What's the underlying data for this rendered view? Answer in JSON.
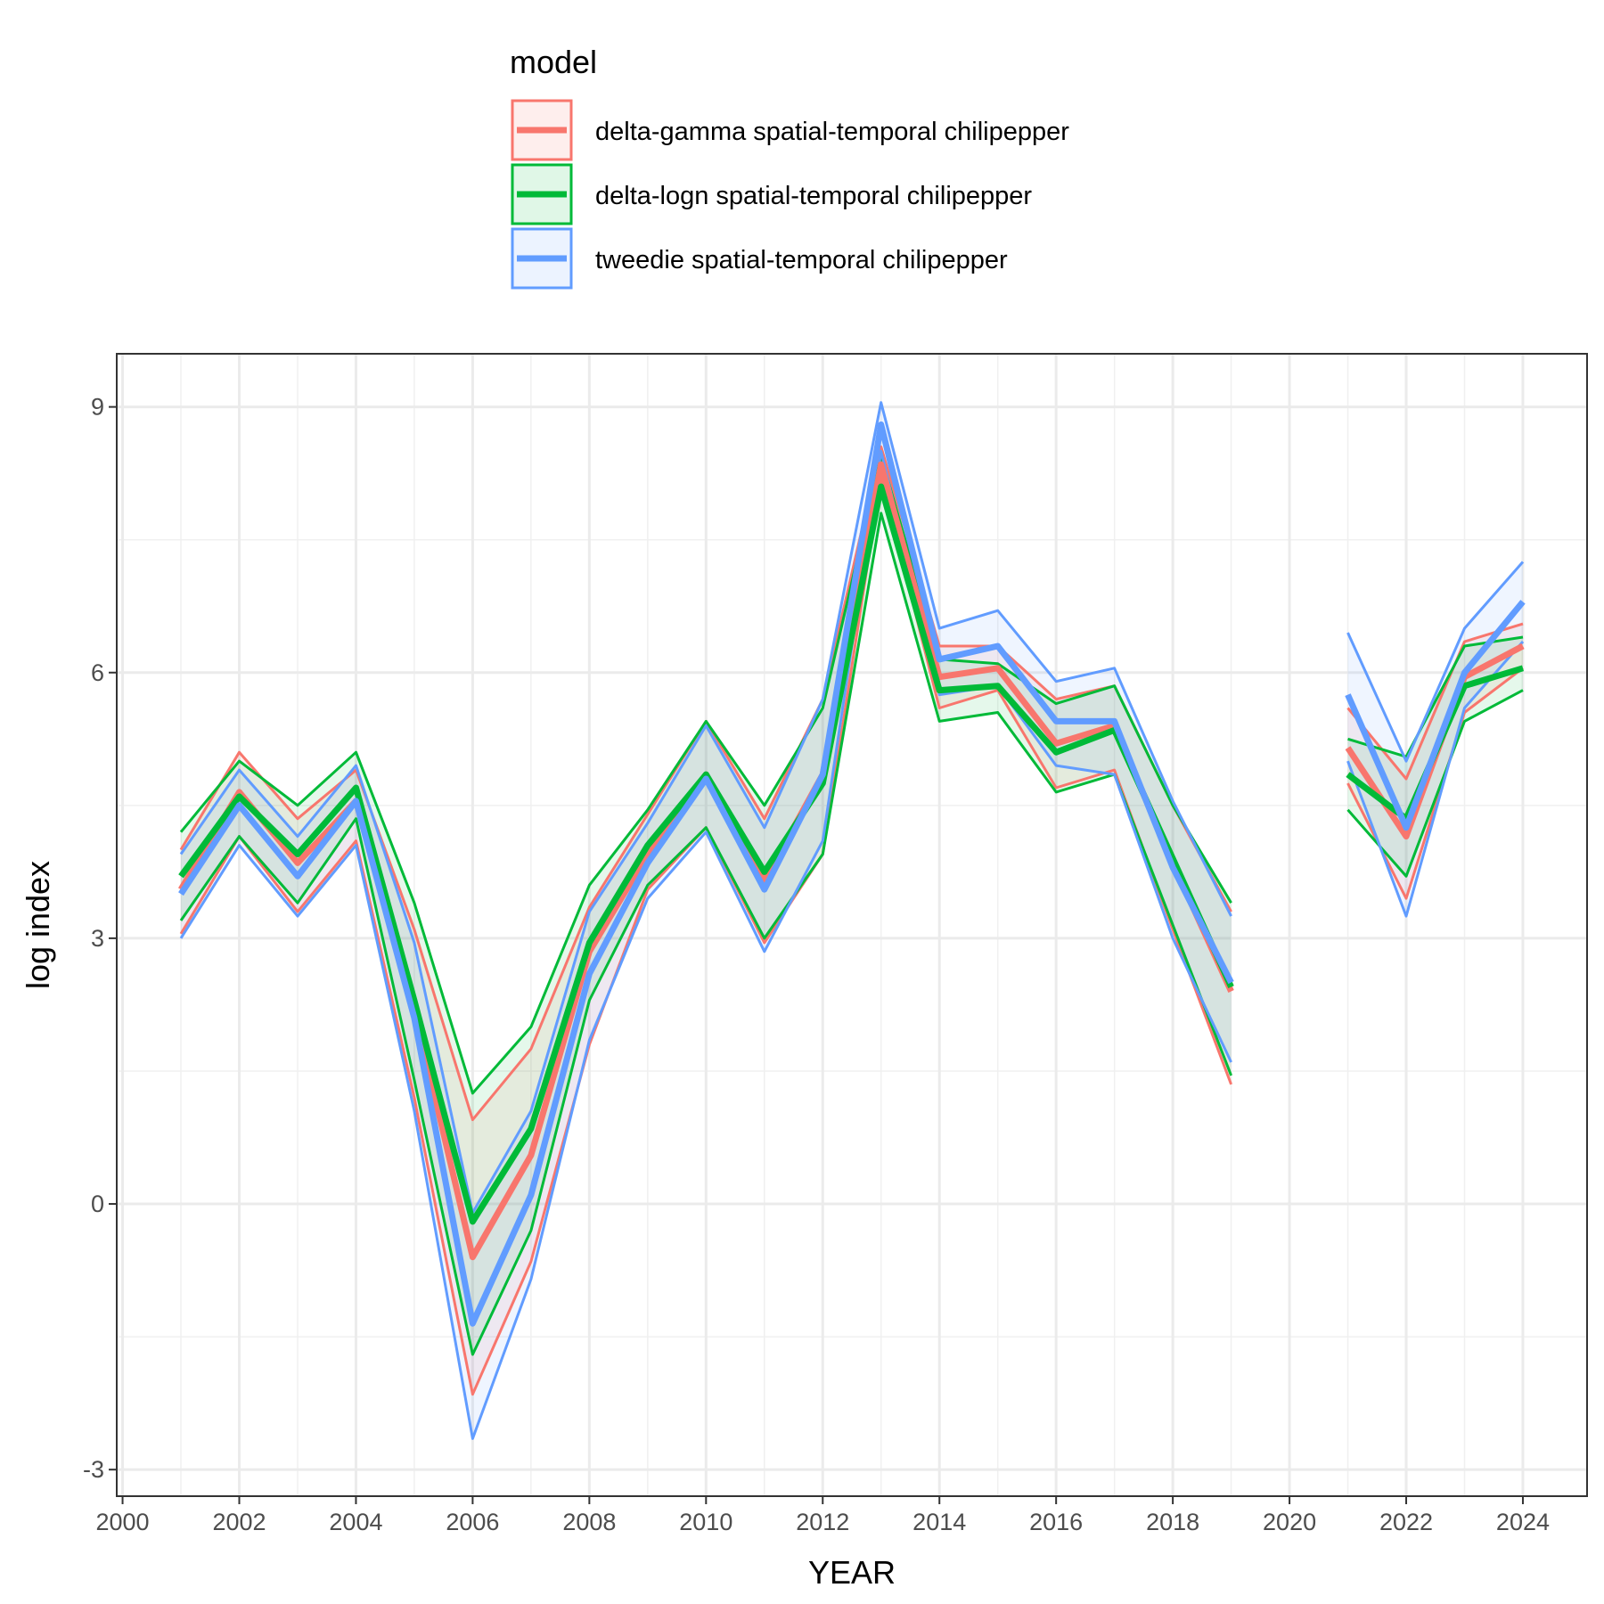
{
  "chart_data": {
    "type": "line",
    "xlabel": "YEAR",
    "ylabel": "log index",
    "xlim": [
      1999.9,
      2025.1
    ],
    "ylim": [
      -3.3,
      9.6
    ],
    "x_ticks": [
      2000,
      2002,
      2004,
      2006,
      2008,
      2010,
      2012,
      2014,
      2016,
      2018,
      2020,
      2022,
      2024
    ],
    "x_tick_labels": [
      "2000",
      "2002",
      "2004",
      "2006",
      "2008",
      "2010",
      "2012",
      "2014",
      "2016",
      "2018",
      "2020",
      "2022",
      "2024"
    ],
    "y_ticks": [
      -3,
      0,
      3,
      6,
      9
    ],
    "y_tick_labels": [
      "-3",
      "0",
      "3",
      "6",
      "9"
    ],
    "x_minor_ticks": [
      2001,
      2003,
      2005,
      2007,
      2009,
      2011,
      2013,
      2015,
      2017,
      2019,
      2021,
      2023
    ],
    "y_minor_ticks": [
      -1.5,
      1.5,
      4.5,
      7.5
    ],
    "grid": true,
    "legend": {
      "title": "model",
      "position": "top"
    },
    "x": [
      2001,
      2002,
      2003,
      2004,
      2005,
      2006,
      2007,
      2008,
      2009,
      2010,
      2011,
      2012,
      2013,
      2014,
      2015,
      2016,
      2017,
      2018,
      2019,
      2020,
      2021,
      2022,
      2023,
      2024
    ],
    "series": [
      {
        "name": "delta-gamma spatial-temporal chilipepper",
        "color": "#F8766D",
        "values": [
          3.55,
          4.65,
          3.85,
          4.55,
          2.2,
          -0.6,
          0.55,
          2.85,
          3.95,
          4.85,
          3.65,
          4.85,
          8.35,
          5.95,
          6.05,
          5.2,
          5.4,
          3.85,
          2.4,
          null,
          5.15,
          4.15,
          5.95,
          6.3
        ],
        "lower": [
          3.05,
          4.15,
          3.3,
          4.1,
          1.2,
          -2.15,
          -0.65,
          1.8,
          3.55,
          4.25,
          2.95,
          3.95,
          8.2,
          5.6,
          5.8,
          4.7,
          4.9,
          3.1,
          1.35,
          null,
          4.75,
          3.45,
          5.55,
          6.05
        ],
        "upper": [
          4.0,
          5.1,
          4.35,
          4.9,
          3.1,
          0.95,
          1.75,
          3.35,
          4.4,
          5.45,
          4.35,
          5.7,
          8.55,
          6.3,
          6.3,
          5.7,
          5.85,
          4.5,
          3.3,
          null,
          5.6,
          4.8,
          6.35,
          6.55
        ]
      },
      {
        "name": "delta-logn spatial-temporal chilipepper",
        "color": "#00BA38",
        "values": [
          3.7,
          4.6,
          3.95,
          4.7,
          2.3,
          -0.2,
          0.85,
          2.95,
          4.05,
          4.85,
          3.75,
          4.75,
          8.1,
          5.8,
          5.85,
          5.1,
          5.35,
          3.9,
          2.45,
          null,
          4.85,
          4.35,
          5.85,
          6.05
        ],
        "lower": [
          3.2,
          4.15,
          3.4,
          4.35,
          1.4,
          -1.7,
          -0.3,
          2.3,
          3.6,
          4.25,
          3.0,
          3.95,
          7.8,
          5.45,
          5.55,
          4.65,
          4.85,
          3.15,
          1.45,
          null,
          4.45,
          3.7,
          5.45,
          5.8
        ],
        "upper": [
          4.2,
          5.0,
          4.5,
          5.1,
          3.4,
          1.25,
          2.0,
          3.6,
          4.45,
          5.45,
          4.5,
          5.6,
          8.45,
          6.15,
          6.1,
          5.65,
          5.85,
          4.5,
          3.4,
          null,
          5.25,
          5.05,
          6.3,
          6.4
        ]
      },
      {
        "name": "tweedie spatial-temporal chilipepper",
        "color": "#619CFF",
        "values": [
          3.5,
          4.5,
          3.7,
          4.55,
          2.1,
          -1.35,
          0.1,
          2.6,
          3.85,
          4.8,
          3.55,
          4.85,
          8.8,
          6.15,
          6.3,
          5.45,
          5.45,
          3.8,
          2.5,
          null,
          5.75,
          4.25,
          6.0,
          6.8
        ],
        "lower": [
          3.0,
          4.05,
          3.25,
          4.05,
          1.05,
          -2.65,
          -0.85,
          1.85,
          3.45,
          4.2,
          2.85,
          4.1,
          8.5,
          5.75,
          5.85,
          4.95,
          4.85,
          3.0,
          1.6,
          null,
          5.0,
          3.25,
          5.6,
          6.35
        ],
        "upper": [
          3.95,
          4.9,
          4.15,
          4.95,
          2.95,
          -0.1,
          1.05,
          3.3,
          4.3,
          5.4,
          4.25,
          5.7,
          9.05,
          6.5,
          6.7,
          5.9,
          6.05,
          4.55,
          3.25,
          null,
          6.45,
          5.0,
          6.5,
          7.25
        ]
      }
    ]
  }
}
